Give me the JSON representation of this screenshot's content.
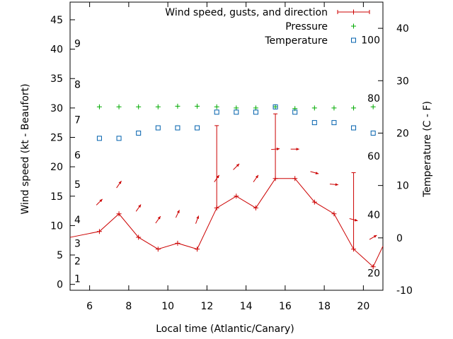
{
  "chart_data": {
    "type": "line",
    "xlabel": "Local time (Atlantic/Canary)",
    "ylabel_left": "Wind speed (kt - Beaufort)",
    "ylabel_right": "Temperature (C - F)",
    "x_range": [
      5,
      21
    ],
    "y_left_range": [
      -1,
      48
    ],
    "y_right_range": [
      -10,
      45
    ],
    "x_ticks": [
      6,
      8,
      10,
      12,
      14,
      16,
      18,
      20
    ],
    "y_left_ticks": [
      0,
      5,
      10,
      15,
      20,
      25,
      30,
      35,
      40,
      45
    ],
    "y_right_ticks": [
      -10,
      0,
      10,
      20,
      30,
      40
    ],
    "beaufort_labels": [
      {
        "text": "1",
        "kt": 1
      },
      {
        "text": "2",
        "kt": 4
      },
      {
        "text": "3",
        "kt": 7
      },
      {
        "text": "4",
        "kt": 11
      },
      {
        "text": "5",
        "kt": 17
      },
      {
        "text": "6",
        "kt": 22
      },
      {
        "text": "7",
        "kt": 28
      },
      {
        "text": "8",
        "kt": 34
      },
      {
        "text": "9",
        "kt": 41
      }
    ],
    "fahrenheit_labels": [
      {
        "text": "20",
        "celsius": -6.7
      },
      {
        "text": "40",
        "celsius": 4.4
      },
      {
        "text": "60",
        "celsius": 15.6
      },
      {
        "text": "80",
        "celsius": 26.7
      },
      {
        "text": "100",
        "celsius": 37.8
      }
    ],
    "legend": [
      {
        "name": "Wind speed, gusts, and direction",
        "color": "#cc0000"
      },
      {
        "name": "Pressure",
        "color": "#00aa00"
      },
      {
        "name": "Temperature",
        "color": "#0060ad"
      }
    ],
    "wind": {
      "color": "#cc0000",
      "line_start": {
        "x": 5,
        "speed": 8
      },
      "line_end": {
        "x": 21,
        "speed": 6.5
      },
      "points": [
        {
          "x": 6.5,
          "speed": 9,
          "dir": 225
        },
        {
          "x": 7.5,
          "speed": 12,
          "dir": 215
        },
        {
          "x": 8.5,
          "speed": 8,
          "dir": 215
        },
        {
          "x": 9.5,
          "speed": 6,
          "dir": 215
        },
        {
          "x": 10.5,
          "speed": 7,
          "dir": 205
        },
        {
          "x": 11.5,
          "speed": 6,
          "dir": 200
        },
        {
          "x": 12.5,
          "speed": 13,
          "gust": 27,
          "dir": 215
        },
        {
          "x": 13.5,
          "speed": 15,
          "dir": 225
        },
        {
          "x": 14.5,
          "speed": 13,
          "dir": 215
        },
        {
          "x": 15.5,
          "speed": 18,
          "gust": 29,
          "dir": 265
        },
        {
          "x": 16.5,
          "speed": 18,
          "dir": 270
        },
        {
          "x": 17.5,
          "speed": 14,
          "dir": 285
        },
        {
          "x": 18.5,
          "speed": 12,
          "dir": 275
        },
        {
          "x": 19.5,
          "speed": 6,
          "gust": 19,
          "dir": 285
        },
        {
          "x": 20.5,
          "speed": 3,
          "dir": 240
        }
      ]
    },
    "pressure": {
      "color": "#00aa00",
      "x": [
        6.5,
        7.5,
        8.5,
        9.5,
        10.5,
        11.5,
        12.5,
        13.5,
        14.5,
        15.5,
        16.5,
        17.5,
        18.5,
        19.5,
        20.5
      ],
      "y": [
        30.2,
        30.2,
        30.2,
        30.2,
        30.3,
        30.3,
        30.2,
        30.0,
        30.0,
        30.2,
        29.9,
        30.0,
        30.0,
        30.0,
        30.2
      ]
    },
    "temperature": {
      "color": "#0060ad",
      "x": [
        6.5,
        7.5,
        8.5,
        9.5,
        10.5,
        11.5,
        12.5,
        13.5,
        14.5,
        15.5,
        16.5,
        17.5,
        18.5,
        19.5,
        20.5
      ],
      "y": [
        19,
        19,
        20,
        21,
        21,
        21,
        24,
        24,
        24,
        25,
        24,
        22,
        22,
        21,
        20
      ]
    }
  }
}
